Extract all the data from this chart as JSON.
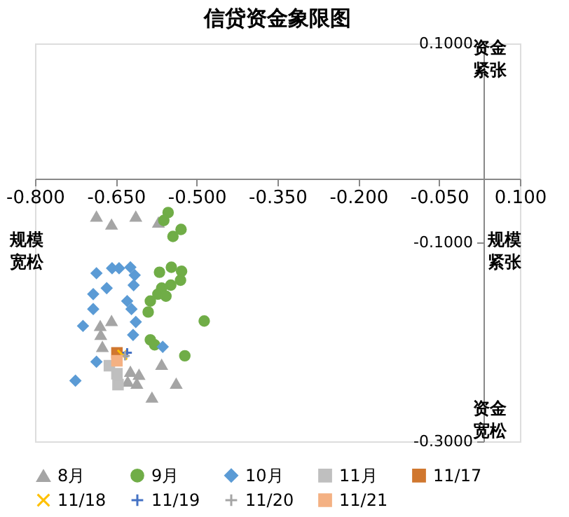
{
  "chart_data": {
    "type": "scatter",
    "title": "信贷资金象限图",
    "xlim": [
      -0.8,
      0.1
    ],
    "xticks": [
      {
        "value": -0.8,
        "label": "-0.800"
      },
      {
        "value": -0.65,
        "label": "-0.650"
      },
      {
        "value": -0.5,
        "label": "-0.500"
      },
      {
        "value": -0.35,
        "label": "-0.350"
      },
      {
        "value": -0.2,
        "label": "-0.200"
      },
      {
        "value": -0.05,
        "label": "-0.050"
      },
      {
        "value": 0.1,
        "label": "0.100"
      }
    ],
    "ylim": [
      -0.3,
      0.1
    ],
    "yticks": [
      {
        "value": 0.1,
        "label": "0.1000"
      },
      {
        "value": -0.1,
        "label": "-0.1000"
      },
      {
        "value": -0.3,
        "label": "-0.3000"
      }
    ],
    "grid": false,
    "legend": "bottom",
    "annotations": [
      "规模宽松",
      "规模紧张",
      "资金紧张",
      "资金宽松"
    ],
    "series": [
      {
        "name": "8月",
        "color": "#a5a5a5",
        "marker": "triangle",
        "x": [
          -0.686,
          -0.658,
          -0.613,
          -0.571,
          -0.658,
          -0.679,
          -0.678,
          -0.675,
          -0.565,
          -0.623,
          -0.607,
          -0.628,
          -0.611,
          -0.538,
          -0.583
        ],
        "values": [
          -0.074,
          -0.082,
          -0.074,
          -0.08,
          -0.179,
          -0.184,
          -0.193,
          -0.205,
          -0.223,
          -0.23,
          -0.233,
          -0.24,
          -0.242,
          -0.242,
          -0.256
        ]
      },
      {
        "name": "9月",
        "color": "#70ad47",
        "marker": "circle",
        "x": [
          -0.553,
          -0.561,
          -0.529,
          -0.544,
          -0.569,
          -0.547,
          -0.528,
          -0.53,
          -0.548,
          -0.565,
          -0.572,
          -0.557,
          -0.586,
          -0.59,
          -0.486,
          -0.586,
          -0.578,
          -0.522
        ],
        "values": [
          -0.07,
          -0.078,
          -0.087,
          -0.094,
          -0.13,
          -0.125,
          -0.129,
          -0.138,
          -0.143,
          -0.146,
          -0.152,
          -0.154,
          -0.159,
          -0.17,
          -0.179,
          -0.198,
          -0.203,
          -0.214
        ]
      },
      {
        "name": "10月",
        "color": "#5b9bd5",
        "marker": "diamond",
        "x": [
          -0.686,
          -0.657,
          -0.644,
          -0.623,
          -0.615,
          -0.617,
          -0.667,
          -0.692,
          -0.692,
          -0.629,
          -0.621,
          -0.613,
          -0.711,
          -0.618,
          -0.563,
          -0.686,
          -0.725
        ],
        "values": [
          -0.131,
          -0.126,
          -0.126,
          -0.125,
          -0.133,
          -0.143,
          -0.146,
          -0.152,
          -0.167,
          -0.159,
          -0.167,
          -0.18,
          -0.184,
          -0.193,
          -0.205,
          -0.22,
          -0.239
        ]
      },
      {
        "name": "11月",
        "color": "#bfbfbf",
        "marker": "square",
        "x": [
          -0.662,
          -0.648,
          -0.646
        ],
        "values": [
          -0.224,
          -0.232,
          -0.243
        ]
      },
      {
        "name": "11/17",
        "color": "#d0772f",
        "marker": "square",
        "x": [
          -0.648
        ],
        "values": [
          -0.211
        ]
      },
      {
        "name": "11/18",
        "color": "#ffc000",
        "marker": "x",
        "x": [
          -0.638
        ],
        "values": [
          -0.213
        ]
      },
      {
        "name": "11/19",
        "color": "#4472c4",
        "marker": "cross",
        "x": [
          -0.629
        ],
        "values": [
          -0.211
        ]
      },
      {
        "name": "11/20",
        "color": "#a5a5a5",
        "marker": "cross",
        "x": [
          -0.633
        ],
        "values": [
          -0.214
        ]
      },
      {
        "name": "11/21",
        "color": "#f4b183",
        "marker": "square",
        "x": [
          -0.648
        ],
        "values": [
          -0.219
        ]
      }
    ]
  }
}
